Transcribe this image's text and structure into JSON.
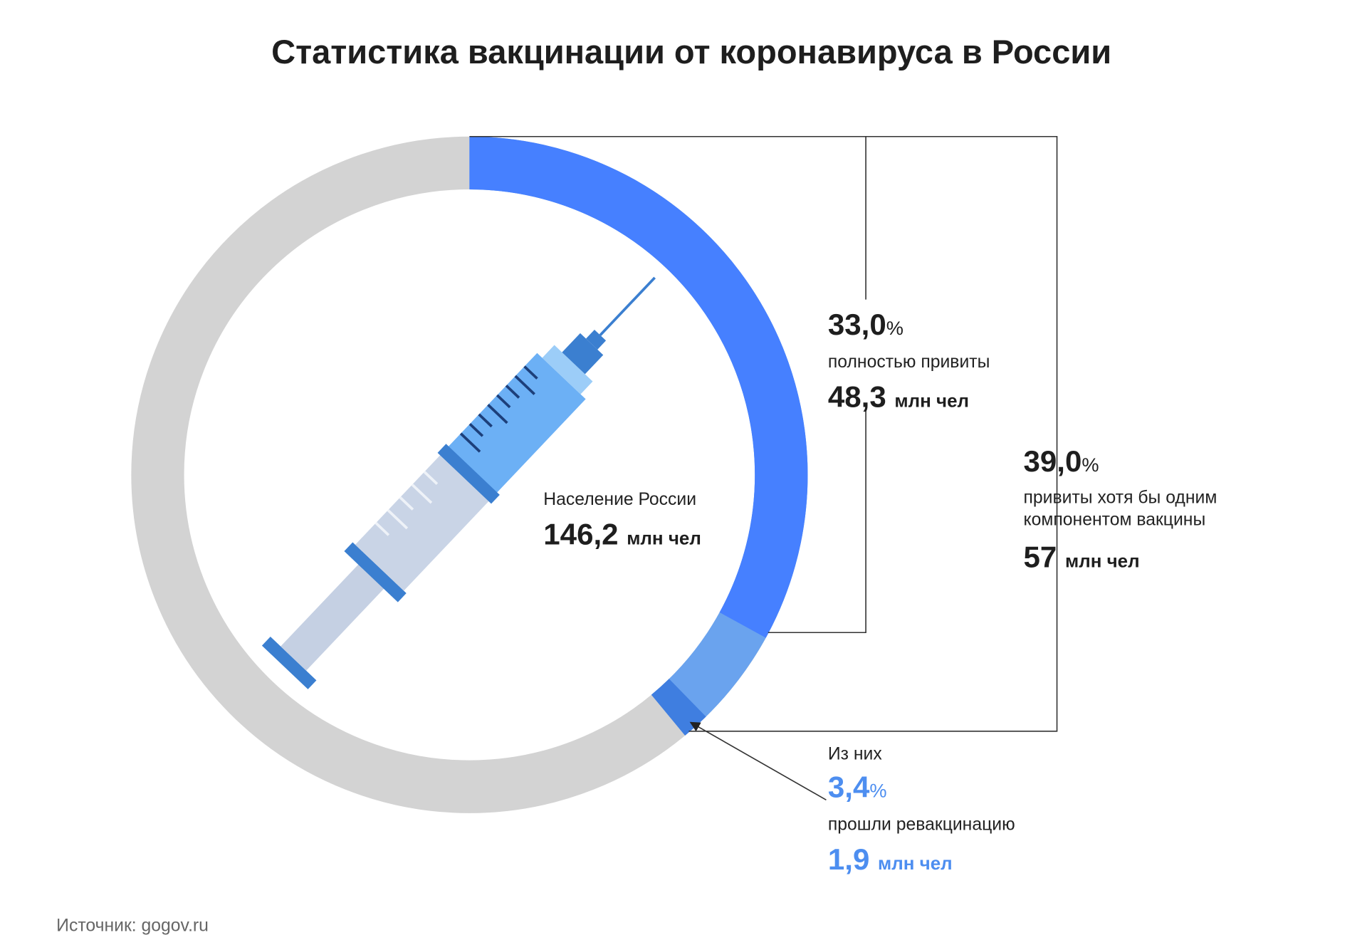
{
  "chart_data": {
    "type": "donut",
    "title": "Статистика вакцинации от коронавируса в России",
    "center_label": "Население России",
    "total": 146.2,
    "total_label": "146,2",
    "count_unit": "млн чел",
    "percent_unit": "%",
    "subset_prefix": "Из них",
    "categories": [
      "полностью привиты",
      "привиты хотя бы одним\nкомпонентом вакцины",
      "прошли ревакцинацию"
    ],
    "values": [
      33.0,
      39.0,
      3.4
    ],
    "value_labels": [
      "33,0",
      "39,0",
      "3,4"
    ],
    "counts": [
      48.3,
      57,
      1.9
    ],
    "count_labels": [
      "48,3",
      "57",
      "1,9"
    ],
    "colors": [
      "#4680ff",
      "#6aa3ee",
      "#3f7ee0"
    ],
    "background_color": "#d3d3d3",
    "source": "Источник: gogov.ru"
  }
}
